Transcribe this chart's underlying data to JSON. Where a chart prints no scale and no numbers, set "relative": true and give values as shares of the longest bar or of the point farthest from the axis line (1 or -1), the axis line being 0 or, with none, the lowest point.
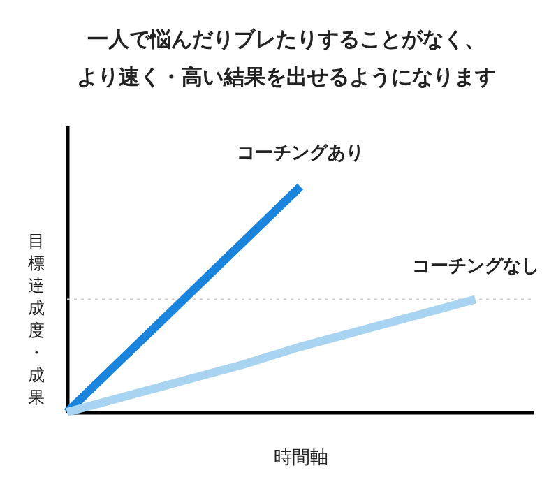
{
  "chart_data": {
    "type": "line",
    "relative": true,
    "title": "一人で悩んだりブレたりすることがなく、",
    "subtitle": "より速く・高い結果を出せるようになります",
    "xlabel": "時間軸",
    "ylabel": "目標達成度・成果",
    "categories": [
      null,
      null,
      null,
      null,
      null,
      null,
      null,
      null,
      null
    ],
    "line_style": "solid",
    "series": [
      {
        "name": "コーチングあり",
        "color": "#1a84dc",
        "values": [
          0,
          0.25,
          0.5,
          0.75,
          1,
          null,
          null,
          null,
          null
        ]
      },
      {
        "name": "コーチングなし",
        "color": "#a8d4f2",
        "values": [
          0,
          0.07,
          0.14,
          0.21,
          0.29,
          0.36,
          0.43,
          0.5,
          null
        ]
      }
    ],
    "ref_lines": [
      {
        "axis": "y",
        "value": 0.5,
        "color": "#cccccc",
        "line_style": "dotted"
      }
    ]
  }
}
